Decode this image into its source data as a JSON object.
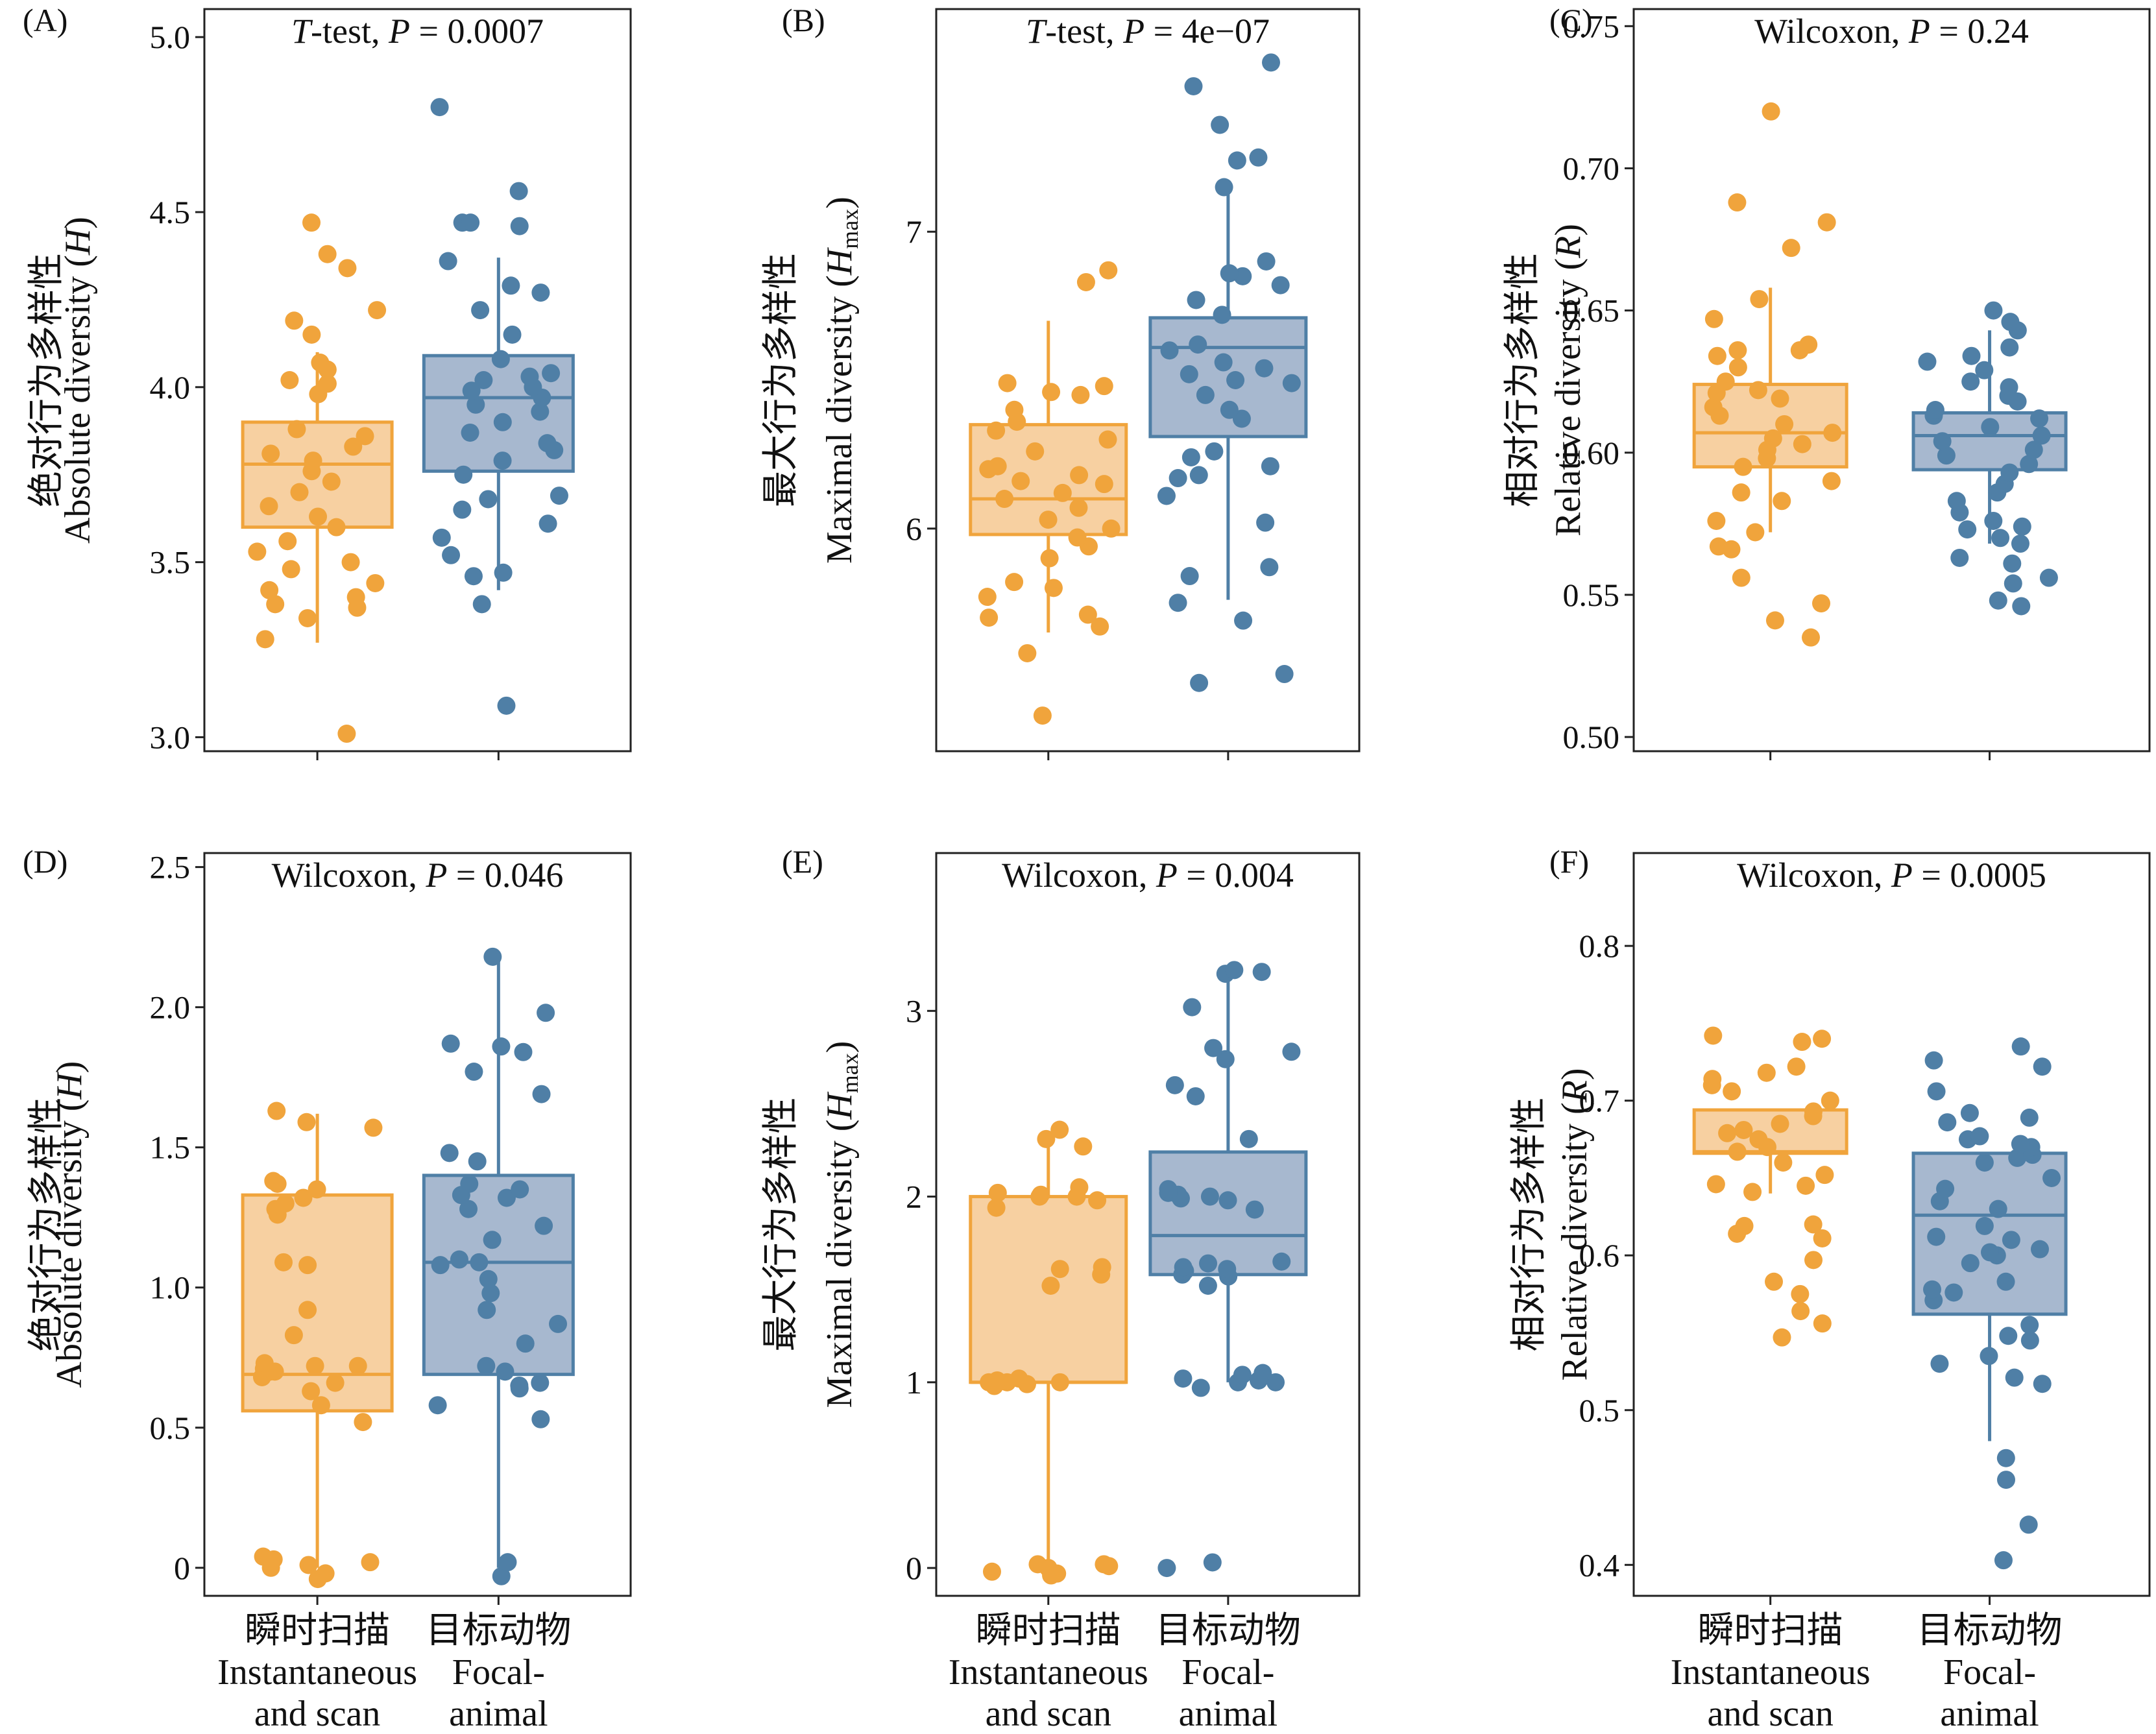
{
  "colors": {
    "group1": "#f0a43c",
    "group1_fill": "#f7d0a1",
    "group2": "#4f7fa6",
    "group2_fill": "#a7b8cf"
  },
  "x_categories": [
    {
      "zh": "瞬时扫描",
      "en1": "Instantaneous",
      "en2": "and scan"
    },
    {
      "zh": "目标动物",
      "en1": "Focal-",
      "en2": "animal"
    }
  ],
  "chart_data": [
    {
      "type": "box",
      "panel": "(A)",
      "test": {
        "name": "T",
        "name_suffix": "-test, ",
        "p_prefix": "P",
        "p_value": " = 0.0007",
        "italic_name": true
      },
      "ylabel_zh": "绝对行为多样性",
      "ylabel_en": "Absolute diversity (",
      "ylabel_sym": "H",
      "ylabel_sub": "",
      "ylabel_close": ")",
      "ylim": [
        2.96,
        5.08
      ],
      "yticks": [
        3.0,
        3.5,
        4.0,
        4.5,
        5.0
      ],
      "ytick_labels": [
        "3.0",
        "3.5",
        "4.0",
        "4.5",
        "5.0"
      ],
      "groups": [
        {
          "q1": 3.6,
          "median": 3.78,
          "q3": 3.9,
          "whisker_low": 3.27,
          "whisker_high": 4.1,
          "points": [
            3.01,
            3.28,
            3.34,
            3.37,
            3.38,
            3.4,
            3.42,
            3.44,
            3.48,
            3.5,
            3.53,
            3.56,
            3.6,
            3.63,
            3.66,
            3.7,
            3.73,
            3.76,
            3.79,
            3.81,
            3.83,
            3.86,
            3.88,
            3.98,
            4.01,
            4.02,
            4.05,
            4.07,
            4.15,
            4.19,
            4.22,
            4.34,
            4.38,
            4.47
          ]
        },
        {
          "q1": 3.76,
          "median": 3.97,
          "q3": 4.09,
          "whisker_low": 3.42,
          "whisker_high": 4.37,
          "points": [
            3.09,
            3.38,
            3.46,
            3.47,
            3.52,
            3.57,
            3.61,
            3.65,
            3.68,
            3.69,
            3.75,
            3.79,
            3.82,
            3.84,
            3.87,
            3.9,
            3.93,
            3.95,
            3.97,
            3.99,
            4.0,
            4.02,
            4.03,
            4.04,
            4.08,
            4.15,
            4.22,
            4.27,
            4.29,
            4.36,
            4.46,
            4.47,
            4.47,
            4.56,
            4.8
          ]
        }
      ]
    },
    {
      "type": "box",
      "panel": "(B)",
      "test": {
        "name": "T",
        "name_suffix": "-test, ",
        "p_prefix": "P",
        "p_value": " = 4e−07",
        "italic_name": true
      },
      "ylabel_zh": "最大行为多样性",
      "ylabel_en": "Maximal diversity (",
      "ylabel_sym": "H",
      "ylabel_sub": "max",
      "ylabel_close": ")",
      "ylim": [
        5.25,
        7.75
      ],
      "yticks": [
        6,
        7
      ],
      "ytick_labels": [
        "6",
        "7"
      ],
      "groups": [
        {
          "q1": 5.98,
          "median": 6.1,
          "q3": 6.35,
          "whisker_low": 5.65,
          "whisker_high": 6.7,
          "points": [
            5.37,
            5.58,
            5.67,
            5.7,
            5.71,
            5.77,
            5.8,
            5.82,
            5.9,
            5.94,
            5.97,
            6.0,
            6.03,
            6.07,
            6.1,
            6.12,
            6.15,
            6.16,
            6.18,
            6.2,
            6.21,
            6.26,
            6.3,
            6.33,
            6.36,
            6.4,
            6.45,
            6.46,
            6.48,
            6.49,
            6.83,
            6.87
          ]
        },
        {
          "q1": 6.31,
          "median": 6.61,
          "q3": 6.71,
          "whisker_low": 5.76,
          "whisker_high": 7.15,
          "points": [
            5.48,
            5.51,
            5.69,
            5.75,
            5.84,
            5.87,
            6.02,
            6.11,
            6.17,
            6.18,
            6.21,
            6.24,
            6.26,
            6.37,
            6.4,
            6.45,
            6.49,
            6.5,
            6.52,
            6.54,
            6.56,
            6.6,
            6.62,
            6.72,
            6.77,
            6.82,
            6.85,
            6.86,
            6.9,
            7.15,
            7.24,
            7.25,
            7.36,
            7.49,
            7.57
          ]
        }
      ]
    },
    {
      "type": "box",
      "panel": "(C)",
      "test": {
        "name": "Wilcoxon",
        "name_suffix": ", ",
        "p_prefix": "P",
        "p_value": " = 0.24",
        "italic_name": false
      },
      "ylabel_zh": "相对行为多样性",
      "ylabel_en": "Relative diversity (",
      "ylabel_sym": "R",
      "ylabel_sub": "",
      "ylabel_close": ")",
      "ylim": [
        0.495,
        0.756
      ],
      "yticks": [
        0.5,
        0.55,
        0.6,
        0.65,
        0.7,
        0.75
      ],
      "ytick_labels": [
        "0.50",
        "0.55",
        "0.60",
        "0.65",
        "0.70",
        "0.75"
      ],
      "groups": [
        {
          "q1": 0.595,
          "median": 0.607,
          "q3": 0.624,
          "whisker_low": 0.572,
          "whisker_high": 0.658,
          "points": [
            0.535,
            0.541,
            0.547,
            0.556,
            0.566,
            0.567,
            0.572,
            0.576,
            0.583,
            0.586,
            0.59,
            0.595,
            0.598,
            0.601,
            0.603,
            0.605,
            0.607,
            0.61,
            0.613,
            0.616,
            0.619,
            0.621,
            0.622,
            0.625,
            0.63,
            0.634,
            0.636,
            0.636,
            0.638,
            0.647,
            0.654,
            0.672,
            0.681,
            0.688,
            0.72
          ]
        },
        {
          "q1": 0.594,
          "median": 0.606,
          "q3": 0.614,
          "whisker_low": 0.568,
          "whisker_high": 0.643,
          "points": [
            0.546,
            0.548,
            0.554,
            0.556,
            0.561,
            0.563,
            0.568,
            0.57,
            0.573,
            0.574,
            0.576,
            0.579,
            0.583,
            0.586,
            0.589,
            0.593,
            0.596,
            0.599,
            0.601,
            0.604,
            0.606,
            0.609,
            0.612,
            0.613,
            0.615,
            0.618,
            0.62,
            0.623,
            0.625,
            0.629,
            0.632,
            0.634,
            0.637,
            0.643,
            0.646,
            0.65
          ]
        }
      ]
    },
    {
      "type": "box",
      "panel": "(D)",
      "test": {
        "name": "Wilcoxon",
        "name_suffix": ", ",
        "p_prefix": "P",
        "p_value": " = 0.046",
        "italic_name": false
      },
      "ylabel_zh": "绝对行为多样性",
      "ylabel_en": "Absolute diversity (",
      "ylabel_sym": "H",
      "ylabel_sub": "",
      "ylabel_close": ")",
      "ylim": [
        -0.1,
        2.55
      ],
      "yticks": [
        0,
        0.5,
        1.0,
        1.5,
        2.0,
        2.5
      ],
      "ytick_labels": [
        "0",
        "0.5",
        "1.0",
        "1.5",
        "2.0",
        "2.5"
      ],
      "groups": [
        {
          "q1": 0.56,
          "median": 0.69,
          "q3": 1.33,
          "whisker_low": 0.0,
          "whisker_high": 1.62,
          "points": [
            -0.04,
            -0.02,
            0.0,
            0.01,
            0.02,
            0.03,
            0.04,
            0.52,
            0.58,
            0.63,
            0.66,
            0.68,
            0.7,
            0.7,
            0.71,
            0.72,
            0.72,
            0.73,
            0.83,
            0.92,
            1.08,
            1.09,
            1.26,
            1.28,
            1.3,
            1.32,
            1.35,
            1.37,
            1.38,
            1.57,
            1.59,
            1.63
          ]
        },
        {
          "q1": 0.69,
          "median": 1.09,
          "q3": 1.4,
          "whisker_low": 0.0,
          "whisker_high": 2.19,
          "points": [
            -0.03,
            0.02,
            0.53,
            0.58,
            0.64,
            0.65,
            0.66,
            0.7,
            0.72,
            0.8,
            0.87,
            0.92,
            0.98,
            1.03,
            1.08,
            1.09,
            1.1,
            1.17,
            1.22,
            1.28,
            1.32,
            1.33,
            1.35,
            1.37,
            1.45,
            1.48,
            1.69,
            1.77,
            1.84,
            1.86,
            1.87,
            1.98,
            2.18
          ]
        }
      ]
    },
    {
      "type": "box",
      "panel": "(E)",
      "test": {
        "name": "Wilcoxon",
        "name_suffix": ", ",
        "p_prefix": "P",
        "p_value": " = 0.004",
        "italic_name": false
      },
      "ylabel_zh": "最大行为多样性",
      "ylabel_en": "Maximal diversity (",
      "ylabel_sym": "H",
      "ylabel_sub": "max",
      "ylabel_close": ")",
      "ylim": [
        -0.15,
        3.85
      ],
      "yticks": [
        0,
        1,
        2,
        3
      ],
      "ytick_labels": [
        "0",
        "1",
        "2",
        "3"
      ],
      "groups": [
        {
          "q1": 1.0,
          "median": 1.0,
          "q3": 2.0,
          "whisker_low": 0.0,
          "whisker_high": 2.32,
          "points": [
            -0.04,
            -0.03,
            -0.02,
            0.0,
            0.01,
            0.02,
            0.02,
            0.98,
            0.99,
            1.0,
            1.0,
            1.0,
            1.01,
            1.02,
            1.52,
            1.58,
            1.61,
            1.62,
            1.94,
            1.98,
            2.0,
            2.0,
            2.01,
            2.02,
            2.05,
            2.27,
            2.31,
            2.36
          ]
        },
        {
          "q1": 1.58,
          "median": 1.79,
          "q3": 2.24,
          "whisker_low": 1.0,
          "whisker_high": 3.21,
          "points": [
            0.0,
            0.03,
            0.97,
            1.0,
            1.0,
            1.01,
            1.02,
            1.04,
            1.05,
            1.52,
            1.57,
            1.58,
            1.6,
            1.61,
            1.62,
            1.64,
            1.65,
            1.93,
            1.98,
            1.99,
            2.0,
            2.01,
            2.02,
            2.04,
            2.31,
            2.54,
            2.6,
            2.74,
            2.78,
            2.8,
            3.02,
            3.2,
            3.21,
            3.22
          ]
        }
      ]
    },
    {
      "type": "box",
      "panel": "(F)",
      "test": {
        "name": "Wilcoxon",
        "name_suffix": ", ",
        "p_prefix": "P",
        "p_value": " = 0.0005",
        "italic_name": false
      },
      "ylabel_zh": "相对行为多样性",
      "ylabel_en": "Relative diversity (",
      "ylabel_sym": "R",
      "ylabel_sub": "",
      "ylabel_close": ")",
      "ylim": [
        0.38,
        0.86
      ],
      "yticks": [
        0.4,
        0.5,
        0.6,
        0.7,
        0.8
      ],
      "ytick_labels": [
        "0.4",
        "0.5",
        "0.6",
        "0.7",
        "0.8"
      ],
      "groups": [
        {
          "q1": 0.666,
          "median": 0.667,
          "q3": 0.694,
          "whisker_low": 0.64,
          "whisker_high": 0.694,
          "points": [
            0.547,
            0.556,
            0.564,
            0.575,
            0.583,
            0.597,
            0.611,
            0.614,
            0.619,
            0.62,
            0.641,
            0.645,
            0.646,
            0.652,
            0.66,
            0.667,
            0.67,
            0.675,
            0.679,
            0.681,
            0.685,
            0.69,
            0.693,
            0.7,
            0.706,
            0.71,
            0.714,
            0.718,
            0.722,
            0.738,
            0.74,
            0.742
          ]
        },
        {
          "q1": 0.562,
          "median": 0.626,
          "q3": 0.666,
          "whisker_low": 0.48,
          "whisker_high": 0.666,
          "points": [
            0.403,
            0.426,
            0.455,
            0.469,
            0.517,
            0.521,
            0.53,
            0.535,
            0.545,
            0.548,
            0.555,
            0.571,
            0.576,
            0.578,
            0.583,
            0.595,
            0.6,
            0.602,
            0.604,
            0.61,
            0.612,
            0.619,
            0.63,
            0.635,
            0.643,
            0.65,
            0.66,
            0.663,
            0.665,
            0.67,
            0.672,
            0.675,
            0.677,
            0.686,
            0.689,
            0.692,
            0.706,
            0.722,
            0.726,
            0.735
          ]
        }
      ]
    }
  ]
}
